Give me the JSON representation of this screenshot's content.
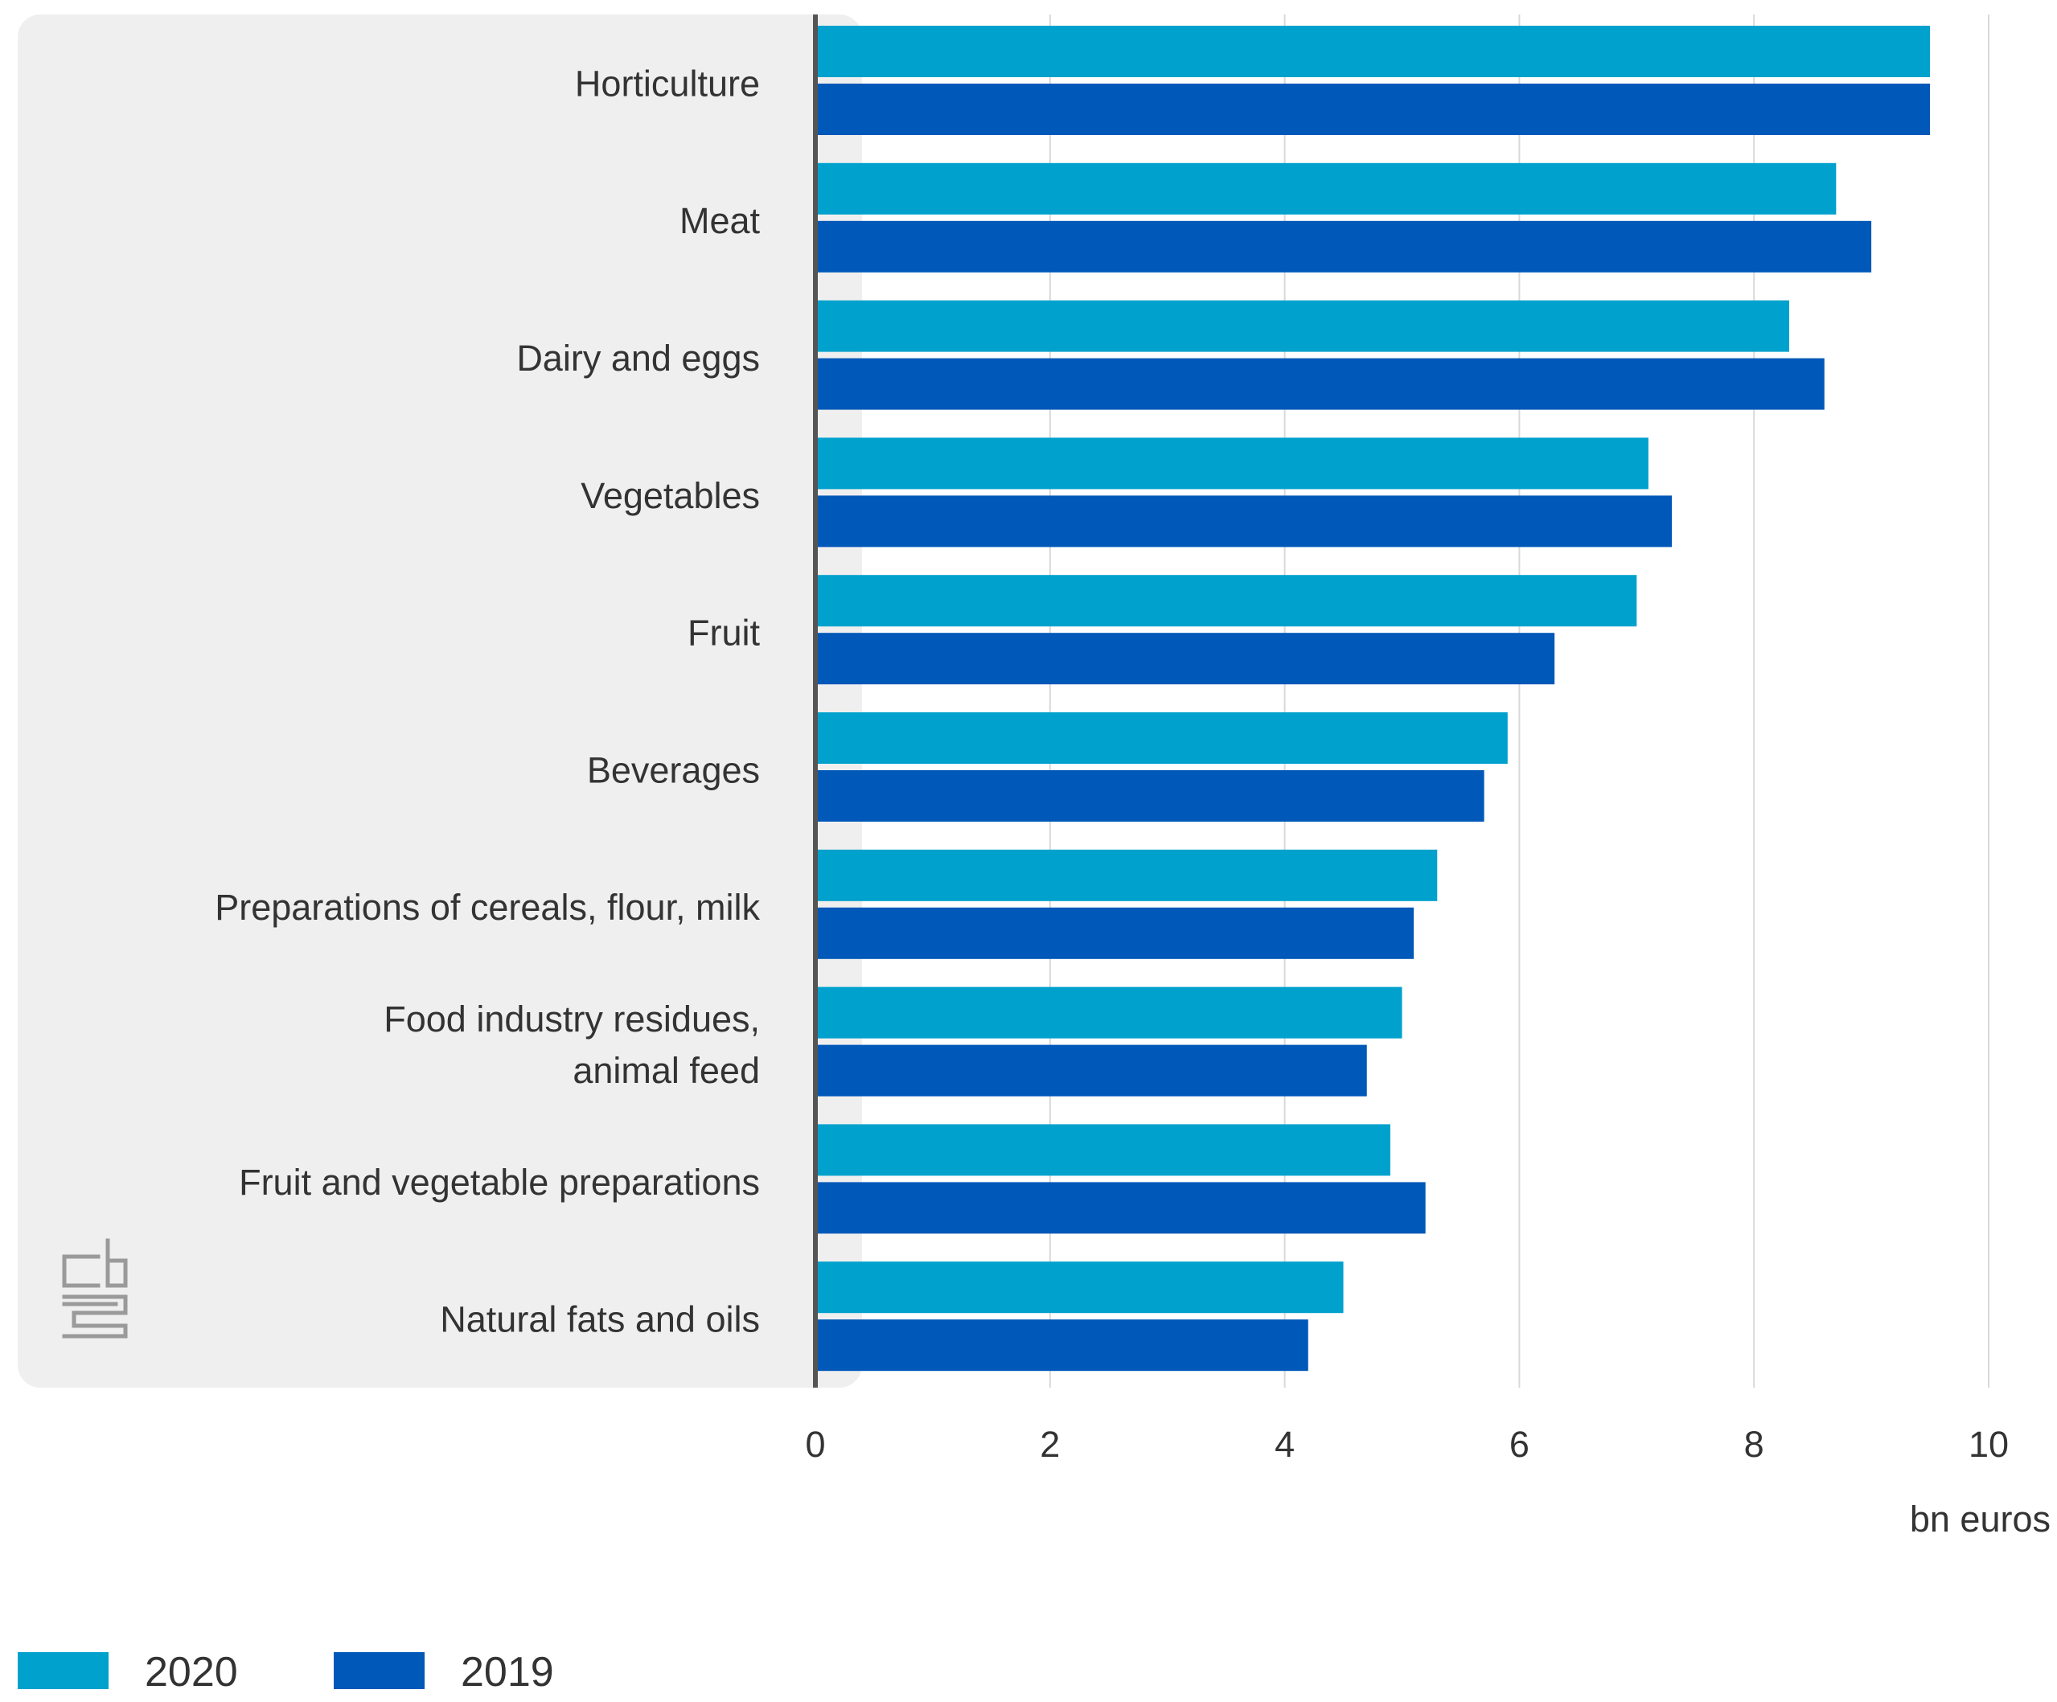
{
  "chart_data": {
    "type": "bar",
    "orientation": "horizontal",
    "categories": [
      [
        "Horticulture"
      ],
      [
        "Meat"
      ],
      [
        "Dairy and eggs"
      ],
      [
        "Vegetables"
      ],
      [
        "Fruit"
      ],
      [
        "Beverages"
      ],
      [
        "Preparations of cereals, flour, milk"
      ],
      [
        "Food industry residues,",
        "animal feed"
      ],
      [
        "Fruit and vegetable preparations"
      ],
      [
        "Natural fats and oils"
      ]
    ],
    "series": [
      {
        "name": "2020",
        "color": "#00a1cd",
        "values": [
          9.5,
          8.7,
          8.3,
          7.1,
          7.0,
          5.9,
          5.3,
          5.0,
          4.9,
          4.5
        ]
      },
      {
        "name": "2019",
        "color": "#0058b8",
        "values": [
          9.5,
          9.0,
          8.6,
          7.3,
          6.3,
          5.7,
          5.1,
          4.7,
          5.2,
          4.2
        ]
      }
    ],
    "xlim": [
      0,
      10
    ],
    "xticks": [
      "0",
      "2",
      "4",
      "6",
      "8",
      "10"
    ],
    "xlabel": "bn euros",
    "grid": true,
    "legend": "bottom-left"
  },
  "colors": {
    "label_panel": "#efefef",
    "grid": "#d9d9d9",
    "axis": "#555555",
    "logo": "#9a9a9a"
  },
  "logo": {
    "text": "cbs",
    "icon": "cbs-logo-icon"
  }
}
